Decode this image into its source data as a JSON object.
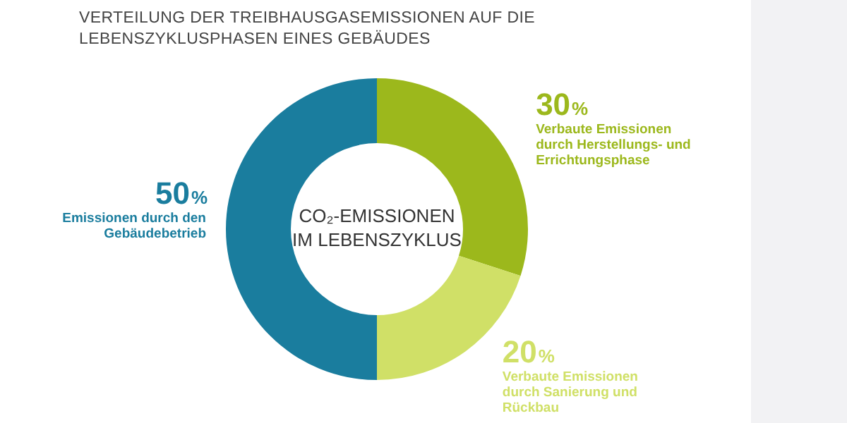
{
  "chart_data": {
    "type": "donut",
    "title": "VERTEILUNG DER TREIBHAUSGASEMISSIONEN AUF DIE LEBENSZYKLUSPHASEN EINES GEBÄUDES",
    "categories": [
      "Verbaute Emissionen durch Herstellungs- und Errichtungsphase",
      "Verbaute Emissionen durch Sanierung und Rückbau",
      "Emissionen durch den Gebäudebetrieb"
    ],
    "values": [
      30,
      20,
      50
    ],
    "colors": [
      "#9cb81c",
      "#d0e067",
      "#1a7d9e"
    ],
    "value_labels": [
      "30%",
      "20%",
      "50%"
    ],
    "annotations": [
      "CO₂-EMISSIONEN IM LEBENSZYKLUS"
    ],
    "legend": false
  }
}
